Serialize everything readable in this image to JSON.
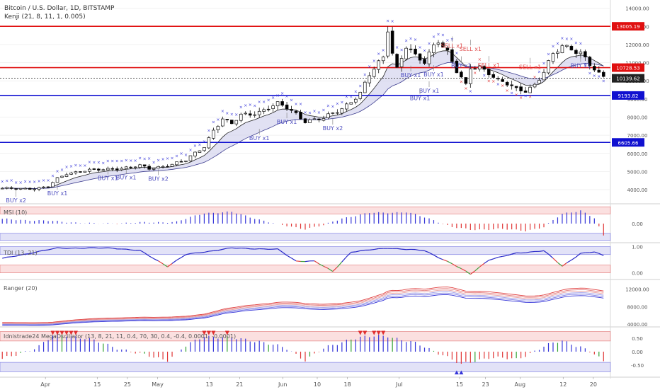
{
  "header": {
    "symbol": "Bitcoin / U.S. Dollar, 1D, BITSTAMP",
    "indicator": "Kenji (21, 8, 11, 1, 0.005)"
  },
  "panes": {
    "msi": "MSI (10)",
    "tdi": "TDI (13, 21)",
    "ranger": "Ranger (20)",
    "mega": "Idnistrade24 MegaOscillator (13, 8, 21, 11, 0.4, 70, 30, 0.4, -0.4, 0.0001, -0.0001)"
  },
  "colors": {
    "up": "#ffffff",
    "down": "#000000",
    "resistance": "#e01010",
    "support": "#1010d0",
    "cross": "#3b3bd8",
    "cloud": "#c8c8ea"
  },
  "chart_data": [
    {
      "type": "candlestick",
      "title": "Bitcoin / U.S. Dollar, 1D, BITSTAMP",
      "ylim": [
        3300,
        14300
      ],
      "yticks": [
        4000,
        5000,
        6000,
        7000,
        8000,
        9000,
        10000,
        11000,
        12000,
        13000,
        14000
      ],
      "ytick_labels": [
        "4000.00",
        "5000.00",
        "6000.00",
        "7000.00",
        "8000.00",
        "9000.00",
        "10000.00",
        "11000.00",
        "12000.00",
        "13000.00",
        "14000.00"
      ],
      "x_labels": [
        "Apr",
        "15",
        "25",
        "May",
        "13",
        "21",
        "Jun",
        "10",
        "18",
        "Jul",
        "15",
        "23",
        "Aug",
        "12",
        "20"
      ],
      "levels": [
        {
          "value": 13005.19,
          "label": "13005.19",
          "color": "#e01010"
        },
        {
          "value": 10728.53,
          "label": "10728.53",
          "color": "#e01010"
        },
        {
          "value": 10139.62,
          "label": "10139.62",
          "color": "#222222"
        },
        {
          "value": 9193.82,
          "label": "9193.82",
          "color": "#1010d0"
        },
        {
          "value": 6605.66,
          "label": "6605.66",
          "color": "#1010d0"
        }
      ],
      "close_path": [
        [
          0,
          4050
        ],
        [
          8,
          4080
        ],
        [
          10,
          4150
        ],
        [
          12,
          4600
        ],
        [
          14,
          4900
        ],
        [
          18,
          5050
        ],
        [
          22,
          5100
        ],
        [
          26,
          5200
        ],
        [
          30,
          5300
        ],
        [
          32,
          5150
        ],
        [
          36,
          5350
        ],
        [
          40,
          5600
        ],
        [
          44,
          6400
        ],
        [
          46,
          7300
        ],
        [
          48,
          7900
        ],
        [
          50,
          7600
        ],
        [
          52,
          8100
        ],
        [
          56,
          8300
        ],
        [
          60,
          8700
        ],
        [
          62,
          8500
        ],
        [
          64,
          8200
        ],
        [
          66,
          7800
        ],
        [
          70,
          7900
        ],
        [
          74,
          8500
        ],
        [
          78,
          9300
        ],
        [
          80,
          10300
        ],
        [
          83,
          11300
        ],
        [
          84,
          12900
        ],
        [
          85,
          11600
        ],
        [
          86,
          10700
        ],
        [
          88,
          11900
        ],
        [
          90,
          11300
        ],
        [
          92,
          11000
        ],
        [
          94,
          12000
        ],
        [
          95,
          12300
        ],
        [
          97,
          11600
        ],
        [
          99,
          10500
        ],
        [
          101,
          9700
        ],
        [
          102,
          10700
        ],
        [
          104,
          10800
        ],
        [
          106,
          10500
        ],
        [
          108,
          10000
        ],
        [
          110,
          9800
        ],
        [
          112,
          9500
        ],
        [
          114,
          9500
        ],
        [
          116,
          9800
        ],
        [
          118,
          10500
        ],
        [
          120,
          11400
        ],
        [
          122,
          11900
        ],
        [
          124,
          11800
        ],
        [
          126,
          11600
        ],
        [
          128,
          10900
        ],
        [
          130,
          10300
        ],
        [
          131,
          10139.62
        ]
      ],
      "signals": [
        {
          "label": "BUY x2",
          "i": 3,
          "price": 3450
        },
        {
          "label": "BUY x1",
          "i": 12,
          "price": 3850
        },
        {
          "label": "BUY x1",
          "i": 23,
          "price": 4680
        },
        {
          "label": "BUY x1",
          "i": 27,
          "price": 4730
        },
        {
          "label": "BUY x2",
          "i": 34,
          "price": 4650
        },
        {
          "label": "BUY x1",
          "i": 56,
          "price": 6880
        },
        {
          "label": "BUY x1",
          "i": 62,
          "price": 7780
        },
        {
          "label": "BUY x2",
          "i": 72,
          "price": 7430
        },
        {
          "label": "BUY x1",
          "i": 89,
          "price": 10370
        },
        {
          "label": "BUY x1",
          "i": 93,
          "price": 9500
        },
        {
          "label": "BUY x1",
          "i": 91,
          "price": 9100
        },
        {
          "label": "BUY x1",
          "i": 94,
          "price": 10400
        },
        {
          "label": "SELL x1",
          "i": 98,
          "price": 11980
        },
        {
          "label": "SELL x1",
          "i": 102,
          "price": 11800
        },
        {
          "label": "BUY x1",
          "i": 100,
          "price": 10880
        },
        {
          "label": "SELL x1",
          "i": 106,
          "price": 10900
        },
        {
          "label": "SELL x1",
          "i": 115,
          "price": 10800
        },
        {
          "label": "BUY x1",
          "i": 126,
          "price": 10880
        }
      ]
    },
    {
      "type": "bar",
      "title": "MSI (10)",
      "ylim": [
        -1,
        1
      ],
      "yticks": [
        0
      ],
      "ytick_labels": [
        "0.00"
      ],
      "path": [
        [
          0,
          0.25
        ],
        [
          10,
          0.15
        ],
        [
          20,
          0.0
        ],
        [
          30,
          0.05
        ],
        [
          38,
          0.1
        ],
        [
          44,
          0.6
        ],
        [
          50,
          0.65
        ],
        [
          55,
          0.3
        ],
        [
          60,
          -0.05
        ],
        [
          66,
          -0.3
        ],
        [
          70,
          -0.1
        ],
        [
          74,
          0.3
        ],
        [
          80,
          0.6
        ],
        [
          88,
          0.65
        ],
        [
          94,
          0.2
        ],
        [
          98,
          -0.2
        ],
        [
          102,
          -0.35
        ],
        [
          108,
          -0.3
        ],
        [
          114,
          -0.4
        ],
        [
          118,
          -0.2
        ],
        [
          122,
          0.55
        ],
        [
          126,
          0.75
        ],
        [
          129,
          0.3
        ],
        [
          131,
          -0.7
        ]
      ]
    },
    {
      "type": "line",
      "title": "TDI (13, 21)",
      "ylim": [
        -0.2,
        1.1
      ],
      "yticks": [
        1,
        0
      ],
      "ytick_labels": [
        "1.00",
        "0.00"
      ],
      "path": [
        [
          0,
          0.55
        ],
        [
          6,
          0.75
        ],
        [
          12,
          0.95
        ],
        [
          24,
          0.95
        ],
        [
          30,
          0.85
        ],
        [
          36,
          0.25
        ],
        [
          40,
          0.7
        ],
        [
          50,
          0.95
        ],
        [
          60,
          0.9
        ],
        [
          64,
          0.45
        ],
        [
          68,
          0.45
        ],
        [
          72,
          0.05
        ],
        [
          76,
          0.8
        ],
        [
          84,
          0.95
        ],
        [
          92,
          0.85
        ],
        [
          98,
          0.35
        ],
        [
          102,
          -0.05
        ],
        [
          106,
          0.5
        ],
        [
          112,
          0.75
        ],
        [
          118,
          0.85
        ],
        [
          122,
          0.25
        ],
        [
          126,
          0.75
        ],
        [
          129,
          0.8
        ],
        [
          131,
          0.65
        ]
      ]
    },
    {
      "type": "line",
      "title": "Ranger (20)",
      "ylim": [
        3700,
        13700
      ],
      "yticks": [
        12000,
        8000,
        4000
      ],
      "ytick_labels": [
        "12000.00",
        "8000.00",
        "4000.00"
      ]
    },
    {
      "type": "bar",
      "title": "Idnistrade24 MegaOscillator (13, 8, 21, 11, 0.4, 70, 30, 0.4, -0.4, 0.0001, -0.0001)",
      "ylim": [
        -0.9,
        0.9
      ],
      "yticks": [
        0.5,
        0,
        -0.5
      ],
      "ytick_labels": [
        "0.50",
        "0.00",
        "-0.50"
      ],
      "path": [
        [
          0,
          -0.3
        ],
        [
          8,
          0.2
        ],
        [
          12,
          0.7
        ],
        [
          18,
          0.5
        ],
        [
          24,
          0.2
        ],
        [
          30,
          -0.1
        ],
        [
          36,
          -0.3
        ],
        [
          40,
          0.2
        ],
        [
          44,
          0.6
        ],
        [
          50,
          0.5
        ],
        [
          56,
          0.4
        ],
        [
          62,
          0.1
        ],
        [
          66,
          -0.3
        ],
        [
          70,
          0.1
        ],
        [
          76,
          0.5
        ],
        [
          84,
          0.6
        ],
        [
          90,
          0.3
        ],
        [
          96,
          -0.1
        ],
        [
          100,
          -0.5
        ],
        [
          106,
          -0.2
        ],
        [
          112,
          -0.3
        ],
        [
          118,
          0.2
        ],
        [
          122,
          0.4
        ],
        [
          126,
          0.2
        ],
        [
          129,
          -0.1
        ],
        [
          131,
          -0.4
        ]
      ]
    }
  ]
}
